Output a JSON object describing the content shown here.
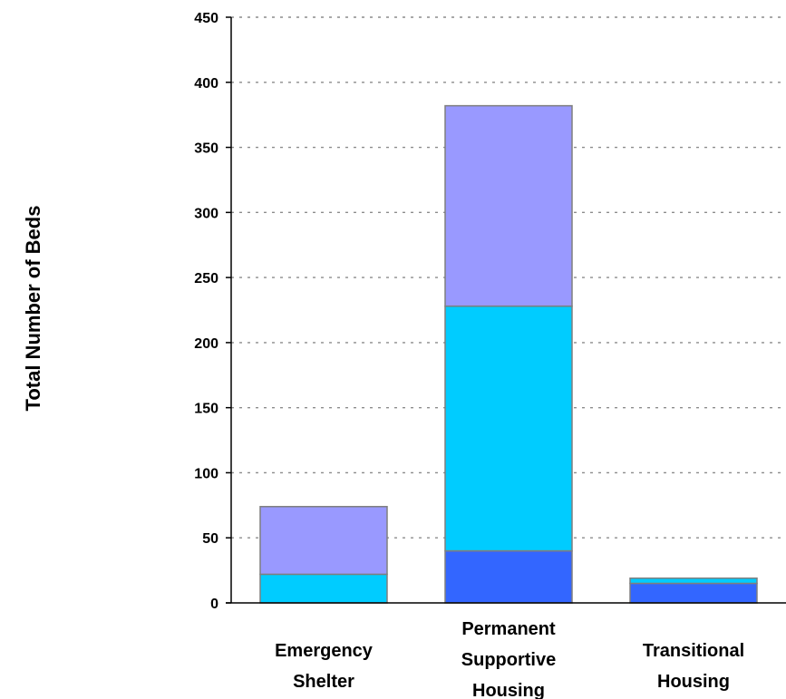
{
  "chart_data": {
    "type": "bar",
    "stacked": true,
    "title": "",
    "xlabel": "",
    "ylabel": "Total Number of Beds",
    "ylim": [
      0,
      450
    ],
    "yticks": [
      0,
      50,
      100,
      150,
      200,
      250,
      300,
      350,
      400,
      450
    ],
    "grid": true,
    "categories": [
      [
        "Emergency",
        "Shelter"
      ],
      [
        "Permanent",
        "Supportive",
        "Housing"
      ],
      [
        "Transitional",
        "Housing"
      ]
    ],
    "series": [
      {
        "color": "#3366ff",
        "values": [
          0,
          40,
          15
        ]
      },
      {
        "color": "#00ccff",
        "values": [
          22,
          188,
          4
        ]
      },
      {
        "color": "#9999ff",
        "values": [
          52,
          154,
          0
        ]
      }
    ]
  }
}
